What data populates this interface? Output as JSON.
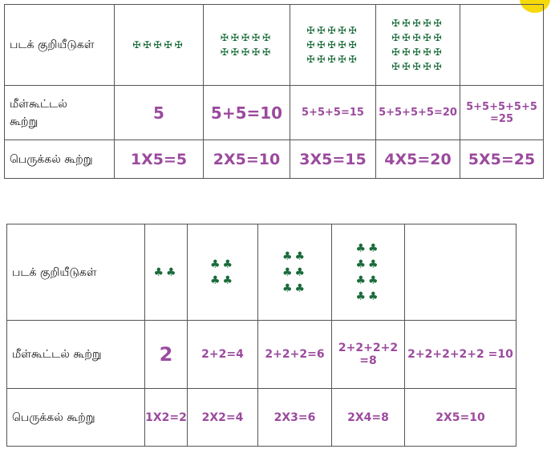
{
  "colors": {
    "symbol": "#1a6b3a",
    "equation": "#9b4a9e",
    "badge": "#f5d90a"
  },
  "table1": {
    "row_labels": [
      "படக் குறியீடுகள்",
      "மீள்கூட்டல் கூற்று",
      "பெருக்கல் கூற்று"
    ],
    "symbol": "✠",
    "symbol_name": "maltese-cross-icon",
    "per_row": 5,
    "symbol_rows": [
      1,
      2,
      3,
      4,
      0
    ],
    "addition": [
      "5",
      "5+5=10",
      "5+5+5=15",
      "5+5+5+5=20",
      "5+5+5+5+5 =25"
    ],
    "multiplication": [
      "1X5=5",
      "2X5=10",
      "3X5=15",
      "4X5=20",
      "5X5=25"
    ]
  },
  "table2": {
    "row_labels": [
      "படக் குறியீடுகள்",
      "மீள்கூட்டல் கூற்று",
      "பெருக்கல் கூற்று"
    ],
    "symbol": "♣",
    "symbol_name": "club-icon",
    "per_row": 2,
    "symbol_rows": [
      1,
      2,
      3,
      4,
      0
    ],
    "addition": [
      "2",
      "2+2=4",
      "2+2+2=6",
      "2+2+2+2 =8",
      "2+2+2+2+2 =10"
    ],
    "multiplication": [
      "1X2=2",
      "2X2=4",
      "2X3=6",
      "2X4=8",
      "2X5=10"
    ]
  }
}
